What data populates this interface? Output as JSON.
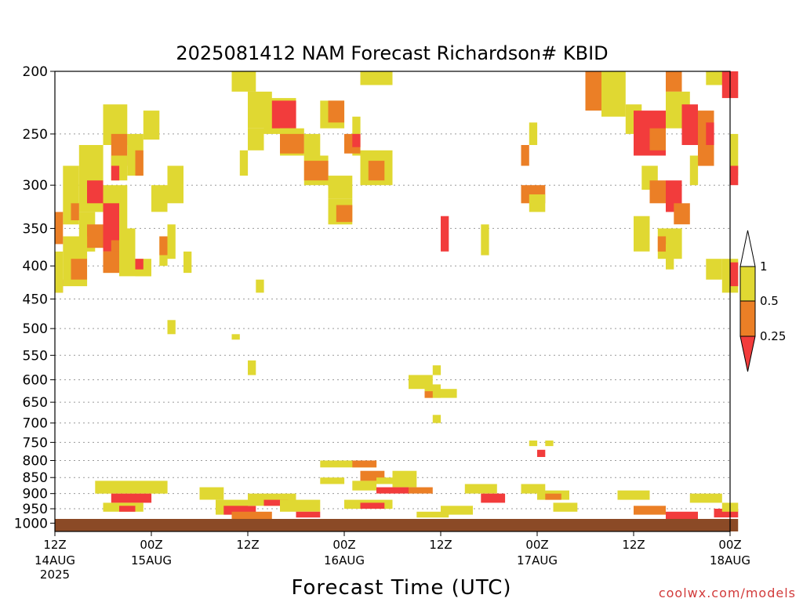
{
  "chart_data": {
    "type": "heatmap",
    "title": "2025081412 NAM Forecast Richardson# KBID",
    "xlabel": "Forecast Time (UTC)",
    "credit": "coolwx.com/models",
    "y_axis": {
      "scale": "log",
      "inverted": true,
      "range": [
        1030,
        200
      ],
      "ticks": [
        "200",
        "250",
        "300",
        "350",
        "400",
        "450",
        "500",
        "550",
        "600",
        "650",
        "700",
        "750",
        "800",
        "850",
        "900",
        "950",
        "1000"
      ]
    },
    "x_axis": {
      "range": [
        "2025-08-14 12Z",
        "2025-08-18 00Z"
      ],
      "ticks": [
        {
          "hour": 0,
          "top": "12Z",
          "bottom": "14AUG",
          "third": "2025"
        },
        {
          "hour": 12,
          "top": "00Z",
          "bottom": "15AUG",
          "third": ""
        },
        {
          "hour": 24,
          "top": "12Z",
          "bottom": "",
          "third": ""
        },
        {
          "hour": 36,
          "top": "00Z",
          "bottom": "16AUG",
          "third": ""
        },
        {
          "hour": 48,
          "top": "12Z",
          "bottom": "",
          "third": ""
        },
        {
          "hour": 60,
          "top": "00Z",
          "bottom": "17AUG",
          "third": ""
        },
        {
          "hour": 72,
          "top": "12Z",
          "bottom": "",
          "third": ""
        },
        {
          "hour": 84,
          "top": "00Z",
          "bottom": "18AUG",
          "third": ""
        }
      ]
    },
    "legend": {
      "placement": "right",
      "labels": [
        "1",
        "0.5",
        "0.25"
      ],
      "colors": {
        "lt1": "#e0d832",
        "lt05": "#eb7f26",
        "lt025": "#f23c3c"
      }
    },
    "colors": {
      "ground": "#8b4a26",
      "grid": "#9a9a9a"
    },
    "units": "hPa",
    "blob_format": "[start_hour, end_hour, top_pressure_hPa, bottom_pressure_hPa, category]",
    "category_key": {
      "y": "Ri < 1",
      "o": "Ri < 0.5",
      "r": "Ri < 0.25"
    },
    "blobs": [
      [
        22,
        25,
        200,
        215,
        "y"
      ],
      [
        24,
        27,
        215,
        245,
        "y"
      ],
      [
        24,
        26,
        245,
        265,
        "y"
      ],
      [
        23,
        24,
        265,
        290,
        "y"
      ],
      [
        26,
        30,
        220,
        250,
        "y"
      ],
      [
        27,
        30,
        222,
        245,
        "r"
      ],
      [
        28,
        31,
        245,
        270,
        "y"
      ],
      [
        28,
        31,
        250,
        268,
        "o"
      ],
      [
        31,
        33,
        250,
        275,
        "y"
      ],
      [
        31,
        34,
        270,
        300,
        "y"
      ],
      [
        31,
        34,
        275,
        295,
        "o"
      ],
      [
        33,
        36,
        222,
        245,
        "y"
      ],
      [
        34,
        36,
        222,
        240,
        "o"
      ],
      [
        34,
        37,
        290,
        315,
        "y"
      ],
      [
        34,
        37,
        315,
        345,
        "y"
      ],
      [
        35,
        37,
        322,
        342,
        "o"
      ],
      [
        37,
        38,
        235,
        270,
        "y"
      ],
      [
        36,
        38,
        250,
        268,
        "o"
      ],
      [
        37,
        38,
        250,
        262,
        "r"
      ],
      [
        38,
        42,
        200,
        210,
        "y"
      ],
      [
        38,
        42,
        265,
        300,
        "y"
      ],
      [
        39,
        41,
        275,
        295,
        "o"
      ],
      [
        3,
        6,
        260,
        330,
        "y"
      ],
      [
        4,
        6,
        295,
        320,
        "r"
      ],
      [
        3,
        5,
        330,
        380,
        "y"
      ],
      [
        4,
        7,
        345,
        375,
        "o"
      ],
      [
        6,
        9,
        225,
        260,
        "y"
      ],
      [
        7,
        9,
        250,
        280,
        "o"
      ],
      [
        7,
        9,
        270,
        295,
        "y"
      ],
      [
        7,
        8,
        280,
        295,
        "r"
      ],
      [
        9,
        11,
        250,
        290,
        "y"
      ],
      [
        10,
        11,
        265,
        290,
        "o"
      ],
      [
        11,
        13,
        230,
        255,
        "y"
      ],
      [
        1,
        3,
        280,
        345,
        "y"
      ],
      [
        2,
        3,
        320,
        340,
        "o"
      ],
      [
        1,
        4,
        360,
        430,
        "y"
      ],
      [
        2,
        4,
        390,
        420,
        "o"
      ],
      [
        6,
        9,
        300,
        410,
        "y"
      ],
      [
        6,
        8,
        320,
        380,
        "r"
      ],
      [
        7,
        8,
        365,
        395,
        "o"
      ],
      [
        6,
        9,
        380,
        410,
        "o"
      ],
      [
        8,
        10,
        350,
        415,
        "y"
      ],
      [
        10,
        12,
        390,
        415,
        "y"
      ],
      [
        10,
        11,
        390,
        405,
        "r"
      ],
      [
        12,
        14,
        300,
        330,
        "y"
      ],
      [
        13,
        14,
        360,
        400,
        "y"
      ],
      [
        13,
        14,
        360,
        385,
        "o"
      ],
      [
        14,
        15,
        345,
        390,
        "y"
      ],
      [
        14,
        16,
        280,
        320,
        "y"
      ],
      [
        16,
        17,
        380,
        410,
        "y"
      ],
      [
        25,
        26,
        420,
        440,
        "y"
      ],
      [
        0,
        1,
        330,
        370,
        "o"
      ],
      [
        0,
        1,
        420,
        440,
        "o"
      ],
      [
        0,
        1,
        380,
        440,
        "y"
      ],
      [
        48,
        49,
        335,
        380,
        "r"
      ],
      [
        53,
        54,
        345,
        385,
        "y"
      ],
      [
        66,
        70,
        200,
        230,
        "o"
      ],
      [
        68,
        71,
        200,
        235,
        "y"
      ],
      [
        71,
        73,
        225,
        250,
        "y"
      ],
      [
        72,
        76,
        230,
        270,
        "r"
      ],
      [
        74,
        76,
        245,
        265,
        "o"
      ],
      [
        76,
        78,
        200,
        215,
        "o"
      ],
      [
        76,
        79,
        215,
        245,
        "y"
      ],
      [
        78,
        80,
        225,
        260,
        "r"
      ],
      [
        81,
        84,
        200,
        210,
        "y"
      ],
      [
        80,
        82,
        230,
        280,
        "o"
      ],
      [
        81,
        82,
        240,
        260,
        "r"
      ],
      [
        83,
        85,
        200,
        220,
        "r"
      ],
      [
        84,
        85,
        250,
        290,
        "y"
      ],
      [
        84,
        85,
        280,
        300,
        "r"
      ],
      [
        79,
        80,
        270,
        300,
        "y"
      ],
      [
        73,
        75,
        280,
        305,
        "y"
      ],
      [
        74,
        76,
        295,
        320,
        "o"
      ],
      [
        76,
        78,
        295,
        330,
        "r"
      ],
      [
        77,
        79,
        320,
        345,
        "o"
      ],
      [
        72,
        74,
        335,
        380,
        "y"
      ],
      [
        75,
        78,
        350,
        390,
        "y"
      ],
      [
        75,
        76,
        360,
        380,
        "o"
      ],
      [
        76,
        77,
        370,
        405,
        "y"
      ],
      [
        81,
        83,
        390,
        420,
        "y"
      ],
      [
        83,
        85,
        390,
        440,
        "y"
      ],
      [
        84,
        85,
        395,
        430,
        "r"
      ],
      [
        59,
        60,
        240,
        260,
        "y"
      ],
      [
        58,
        59,
        260,
        280,
        "o"
      ],
      [
        58,
        61,
        300,
        320,
        "o"
      ],
      [
        59,
        61,
        310,
        330,
        "y"
      ],
      [
        14,
        15,
        485,
        510,
        "y"
      ],
      [
        22,
        23,
        510,
        520,
        "y"
      ],
      [
        24,
        25,
        560,
        590,
        "y"
      ],
      [
        44,
        47,
        590,
        620,
        "y"
      ],
      [
        46,
        48,
        610,
        640,
        "y"
      ],
      [
        47,
        50,
        620,
        640,
        "y"
      ],
      [
        46,
        47,
        625,
        640,
        "o"
      ],
      [
        47,
        48,
        570,
        590,
        "y"
      ],
      [
        47,
        48,
        680,
        700,
        "y"
      ],
      [
        59,
        60,
        745,
        760,
        "y"
      ],
      [
        60,
        61,
        770,
        790,
        "r"
      ],
      [
        61,
        62,
        745,
        760,
        "y"
      ]
    ],
    "low_bands": [
      [
        5,
        14,
        860,
        900,
        "y"
      ],
      [
        7,
        12,
        900,
        930,
        "r"
      ],
      [
        6,
        11,
        930,
        960,
        "y"
      ],
      [
        8,
        10,
        940,
        960,
        "r"
      ],
      [
        18,
        21,
        880,
        920,
        "y"
      ],
      [
        20,
        24,
        920,
        970,
        "y"
      ],
      [
        21,
        25,
        940,
        970,
        "r"
      ],
      [
        22,
        27,
        960,
        990,
        "o"
      ],
      [
        24,
        30,
        900,
        940,
        "y"
      ],
      [
        26,
        29,
        920,
        940,
        "r"
      ],
      [
        28,
        33,
        920,
        960,
        "y"
      ],
      [
        30,
        33,
        960,
        980,
        "r"
      ],
      [
        33,
        40,
        800,
        820,
        "y"
      ],
      [
        37,
        40,
        800,
        820,
        "o"
      ],
      [
        33,
        36,
        850,
        870,
        "y"
      ],
      [
        37,
        40,
        860,
        890,
        "y"
      ],
      [
        38,
        41,
        830,
        860,
        "o"
      ],
      [
        40,
        43,
        850,
        870,
        "y"
      ],
      [
        42,
        45,
        830,
        880,
        "y"
      ],
      [
        44,
        47,
        880,
        900,
        "o"
      ],
      [
        36,
        42,
        920,
        950,
        "y"
      ],
      [
        38,
        41,
        930,
        950,
        "r"
      ],
      [
        40,
        44,
        880,
        900,
        "r"
      ],
      [
        45,
        49,
        960,
        980,
        "y"
      ],
      [
        48,
        52,
        940,
        970,
        "y"
      ],
      [
        51,
        55,
        870,
        900,
        "y"
      ],
      [
        53,
        56,
        900,
        930,
        "r"
      ],
      [
        58,
        61,
        870,
        900,
        "y"
      ],
      [
        60,
        64,
        890,
        920,
        "y"
      ],
      [
        61,
        63,
        900,
        920,
        "o"
      ],
      [
        62,
        65,
        930,
        960,
        "y"
      ],
      [
        70,
        74,
        890,
        920,
        "y"
      ],
      [
        72,
        76,
        940,
        970,
        "o"
      ],
      [
        76,
        80,
        960,
        990,
        "r"
      ],
      [
        79,
        83,
        900,
        930,
        "y"
      ],
      [
        82,
        85,
        950,
        980,
        "r"
      ],
      [
        83,
        85,
        930,
        960,
        "y"
      ]
    ],
    "surface_band": [
      0,
      85,
      985,
      1030
    ]
  }
}
